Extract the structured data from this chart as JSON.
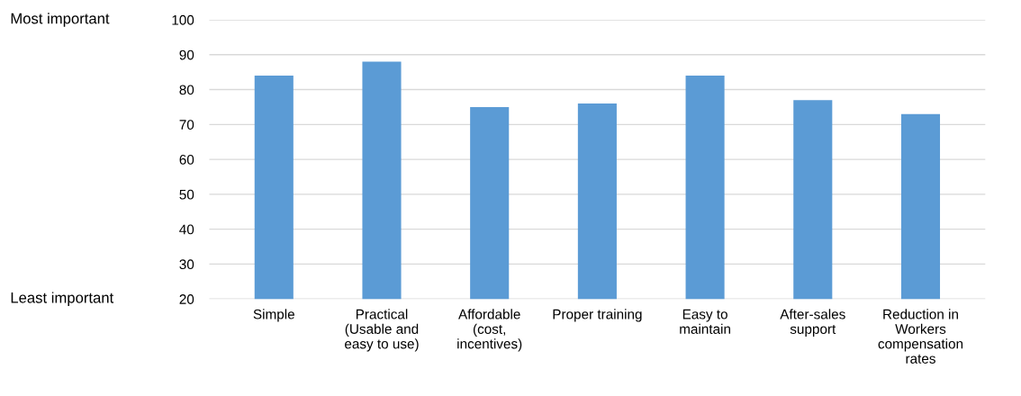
{
  "chart_data": {
    "type": "bar",
    "categories": [
      "Simple",
      "Practical\n(Usable and\neasy to use)",
      "Affordable\n(cost,\nincentives)",
      "Proper training",
      "Easy to\nmaintain",
      "After-sales\nsupport",
      "Reduction in\nWorkers\ncompensation\nrates"
    ],
    "values": [
      84,
      88,
      75,
      76,
      84,
      77,
      73
    ],
    "color": "#5b9bd5",
    "ylim": [
      20,
      100
    ],
    "yticks": [
      20,
      30,
      40,
      50,
      60,
      70,
      80,
      90,
      100
    ],
    "grid": "y",
    "annotations": [
      "Most important",
      "Least important"
    ]
  }
}
